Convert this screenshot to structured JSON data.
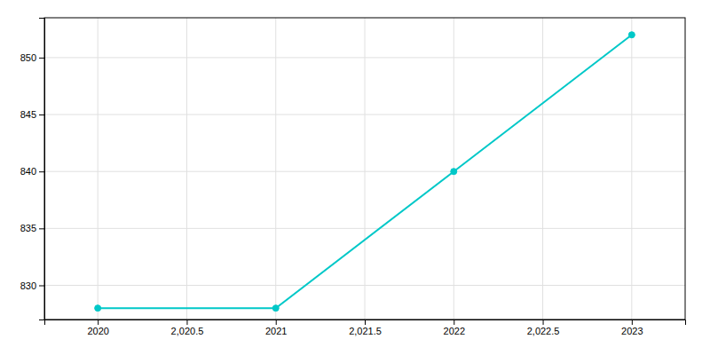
{
  "chart_data": {
    "type": "line",
    "x": [
      2020,
      2021,
      2022,
      2023
    ],
    "values": [
      828,
      828,
      840,
      852
    ],
    "color": "#00C8C8",
    "marker": "circle",
    "xlim": [
      2019.7,
      2023.3
    ],
    "xticks": [
      2020,
      {
        "value": 2020.5,
        "label": "2,020.5"
      },
      2021,
      {
        "value": 2021.5,
        "label": "2,021.5"
      },
      2022,
      {
        "value": 2022.5,
        "label": "2,022.5"
      },
      2023
    ],
    "ylim": [
      827,
      853.5
    ],
    "yticks": [
      830,
      835,
      840,
      845,
      850
    ],
    "grid": true
  }
}
